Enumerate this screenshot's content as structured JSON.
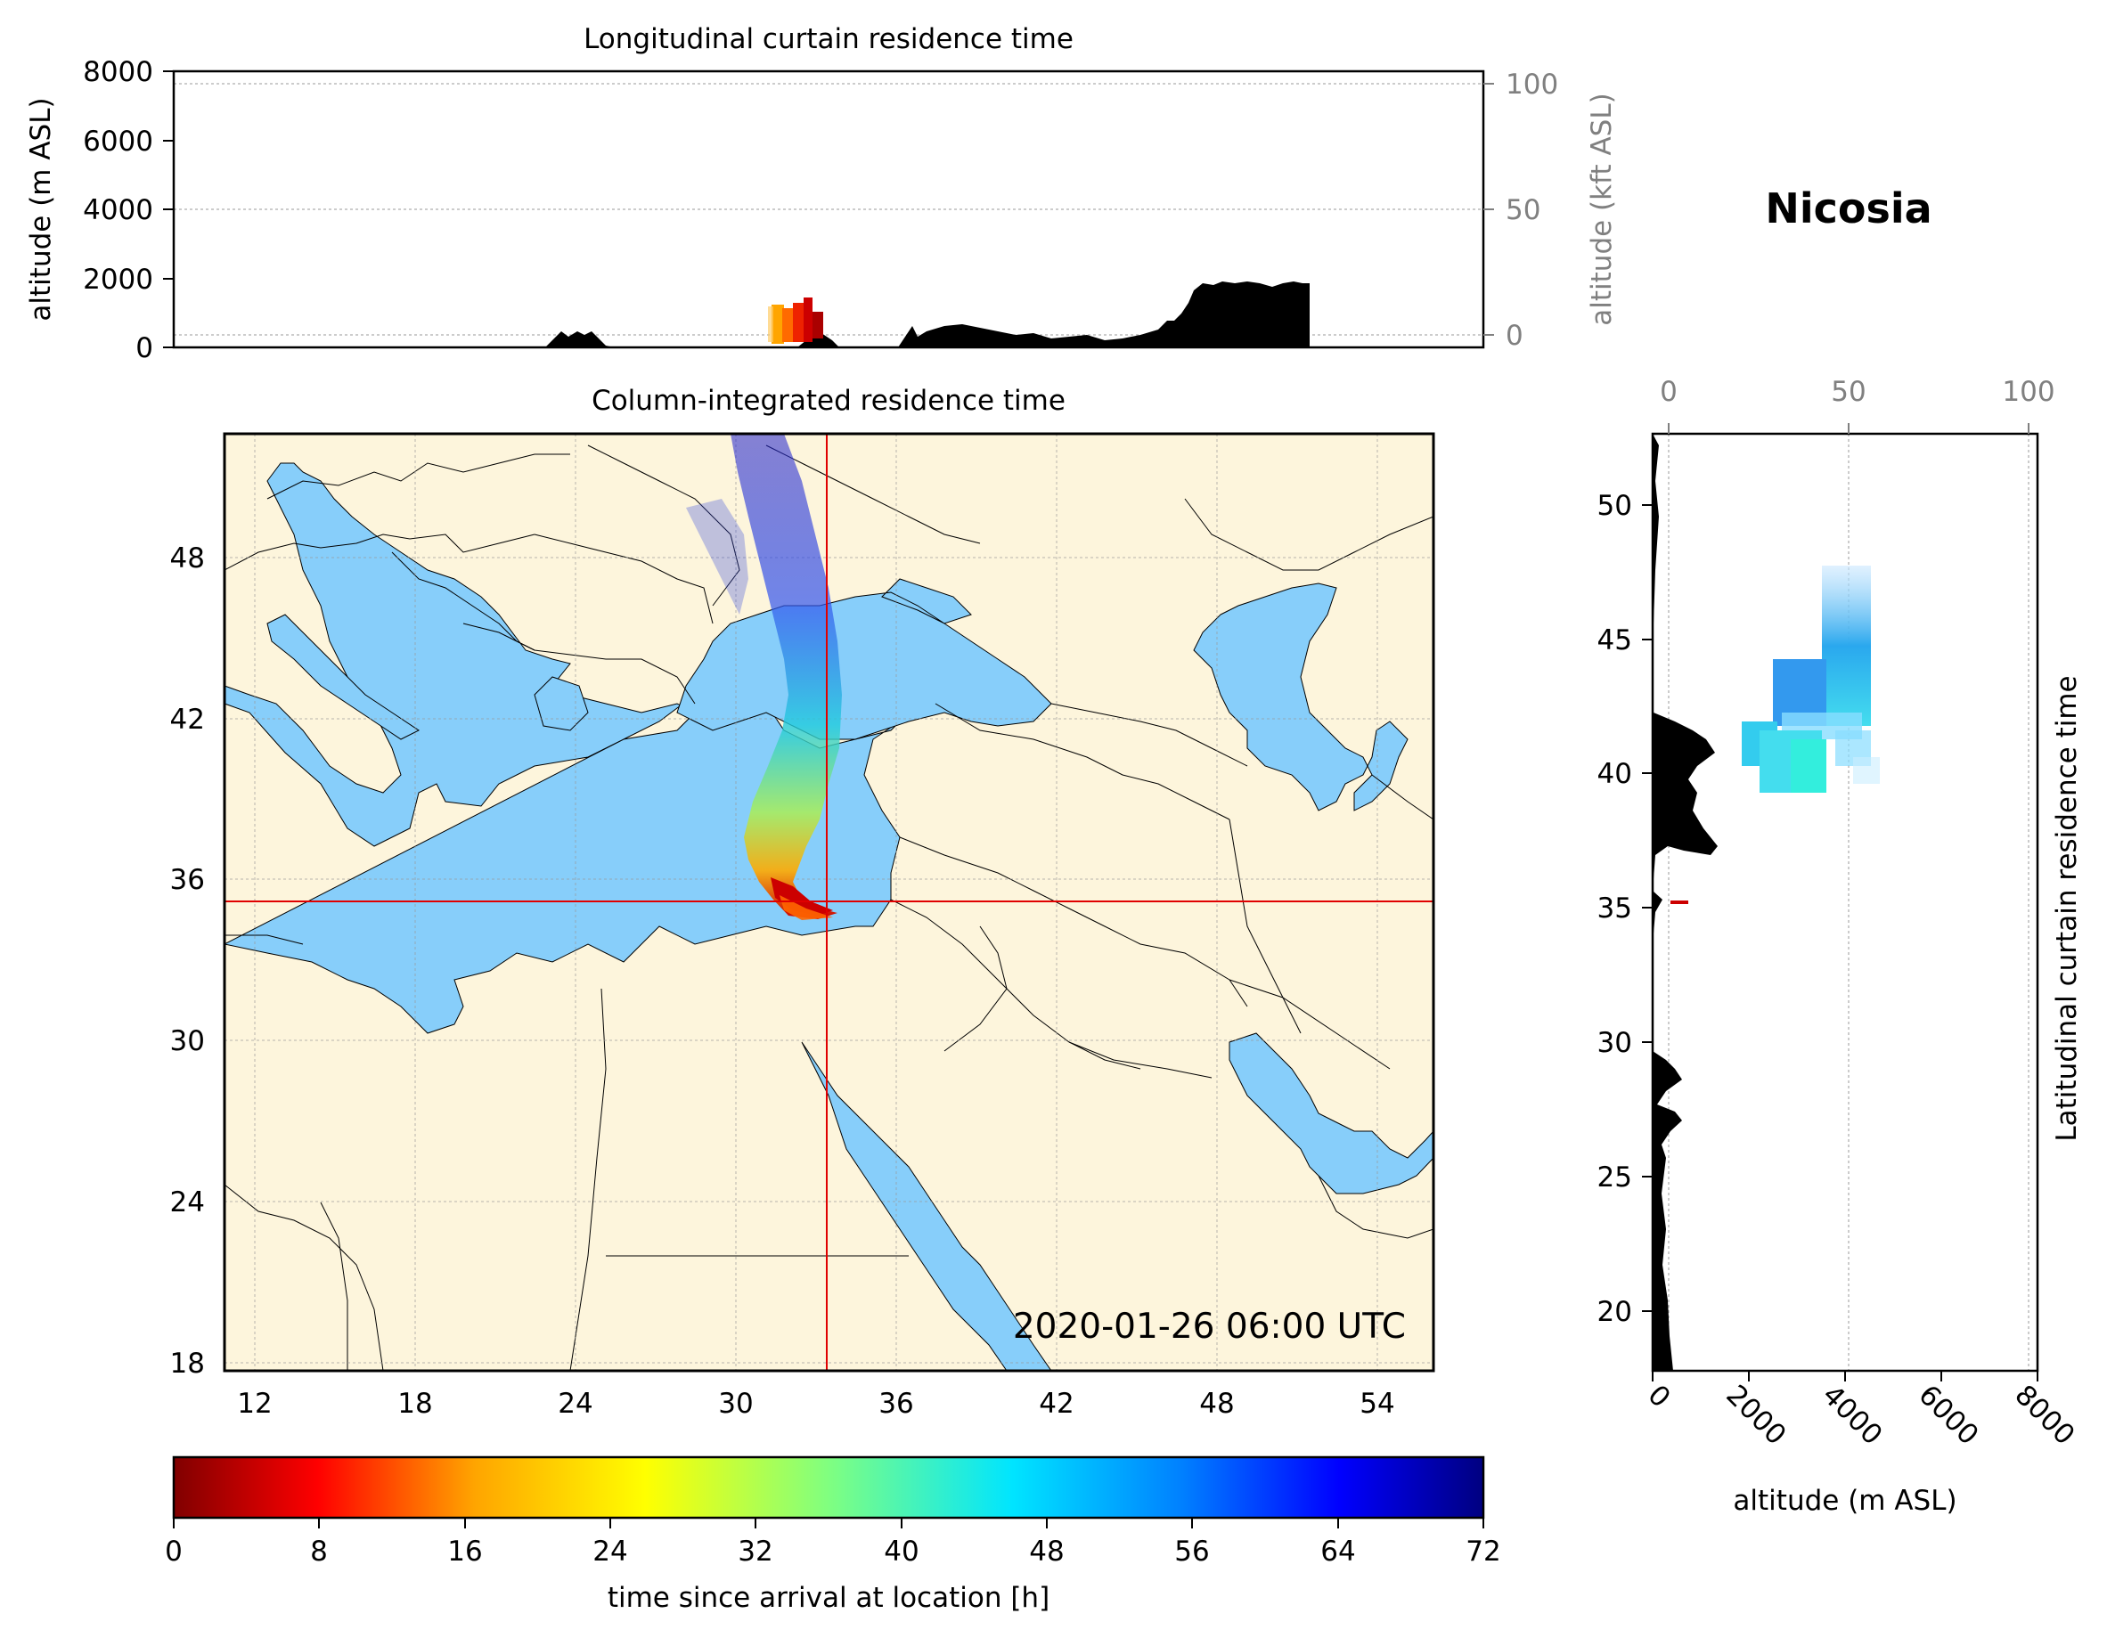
{
  "station_name": "Nicosia",
  "timestamp": "2020-01-26 06:00 UTC",
  "panels": {
    "longitudinal": {
      "title": "Longitudinal curtain residence time",
      "ylabel_left": "altitude (m ASL)",
      "ylabel_right": "altitude (kft ASL)",
      "yticks_left": [
        "0",
        "2000",
        "4000",
        "6000",
        "8000"
      ],
      "yticks_right": [
        "0",
        "50",
        "100"
      ]
    },
    "map": {
      "title": "Column-integrated residence time",
      "xticks": [
        "12",
        "18",
        "24",
        "30",
        "36",
        "42",
        "48",
        "54"
      ],
      "yticks": [
        "18",
        "24",
        "30",
        "36",
        "42",
        "48"
      ],
      "crosshair": {
        "lon": 33.4,
        "lat": 35.2
      },
      "colors": {
        "land": "#fdf5dc",
        "sea": "#87cefa",
        "crosshair": "#e00000"
      }
    },
    "latitudinal": {
      "ylabel_right": "Latitudinal curtain residence time",
      "xlabel": "altitude (m ASL)",
      "yticks": [
        "20",
        "25",
        "30",
        "35",
        "40",
        "45",
        "50"
      ],
      "xticks_bottom": [
        "0",
        "2000",
        "4000",
        "6000",
        "8000"
      ],
      "xticks_top": [
        "0",
        "50",
        "100"
      ]
    },
    "colorbar": {
      "label": "time since arrival at location [h]",
      "ticks": [
        "0",
        "8",
        "16",
        "24",
        "32",
        "40",
        "48",
        "56",
        "64",
        "72"
      ],
      "range": [
        0,
        72
      ],
      "colormap": "jet_r"
    }
  }
}
